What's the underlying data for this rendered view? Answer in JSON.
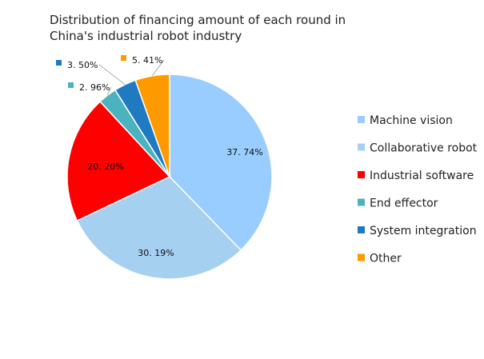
{
  "chart_data": {
    "type": "pie",
    "title_line1": "Distribution of financing amount of each round in",
    "title_line2": "China's industrial robot industry",
    "legend_position": "right",
    "slices": [
      {
        "label": "Machine vision",
        "value": 37.74,
        "display": "37. 74%",
        "color": "#99CCFF"
      },
      {
        "label": "Collaborative robot",
        "value": 30.19,
        "display": "30. 19%",
        "color": "#A6D0F0"
      },
      {
        "label": "Industrial software",
        "value": 20.2,
        "display": "20. 20%",
        "color": "#FF0000"
      },
      {
        "label": "End effector",
        "value": 2.96,
        "display": "2. 96%",
        "color": "#4BB3BF"
      },
      {
        "label": "System integration",
        "value": 3.5,
        "display": "3. 50%",
        "color": "#1F7AC1"
      },
      {
        "label": "Other",
        "value": 5.41,
        "display": "5. 41%",
        "color": "#FF9900"
      }
    ]
  }
}
